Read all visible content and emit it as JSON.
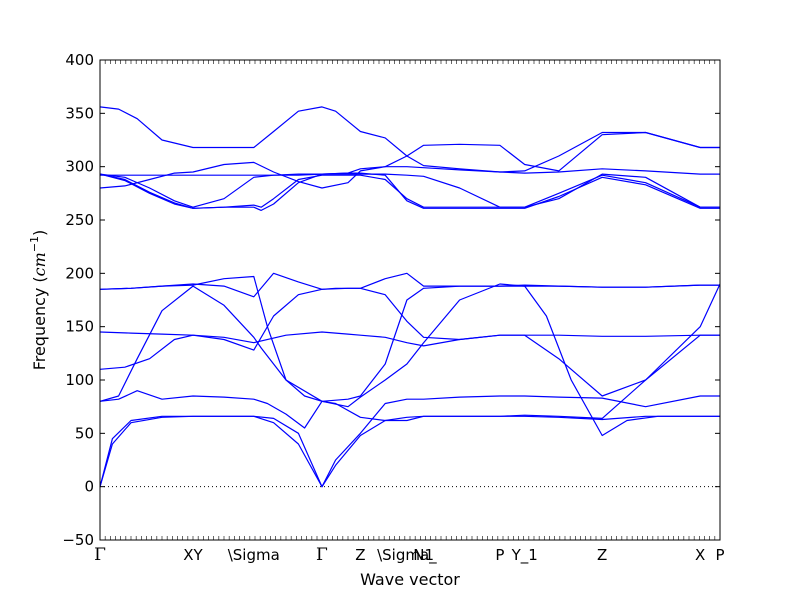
{
  "chart_data": {
    "type": "line",
    "title": "",
    "xlabel": "Wave vector",
    "ylabel_main": "Frequency",
    "ylabel_unit_open": "(",
    "ylabel_unit_var": "cm",
    "ylabel_unit_exp": "−1",
    "ylabel_unit_close": ")",
    "ylim": [
      -50,
      400
    ],
    "yticks": [
      -50,
      0,
      50,
      100,
      150,
      200,
      250,
      300,
      350,
      400
    ],
    "xlim": [
      0,
      1
    ],
    "xticks": [
      {
        "label": "Γ",
        "pos": 0.0
      },
      {
        "label": "XY",
        "pos": 0.15
      },
      {
        "label": "\\Sigma",
        "pos": 0.248
      },
      {
        "label": "Γ",
        "pos": 0.358
      },
      {
        "label": "Z",
        "pos": 0.42
      },
      {
        "label": "\\Sigma_",
        "pos": 0.495
      },
      {
        "label": "N1",
        "pos": 0.522
      },
      {
        "label": "P",
        "pos": 0.645
      },
      {
        "label": "Y_1",
        "pos": 0.685
      },
      {
        "label": "Z",
        "pos": 0.81
      },
      {
        "label": "X",
        "pos": 0.968
      },
      {
        "label": "P",
        "pos": 1.0
      }
    ],
    "grid": false,
    "line_color": "#0000ff",
    "zero_line_color": "#000000",
    "series": [
      {
        "x": [
          0,
          0.02,
          0.05,
          0.1,
          0.15,
          0.2,
          0.248,
          0.28,
          0.32,
          0.358,
          0.38,
          0.42,
          0.46,
          0.495,
          0.522,
          0.58,
          0.645,
          0.685,
          0.74,
          0.81,
          0.88,
          0.968,
          1
        ],
        "values": [
          0,
          40,
          60,
          65,
          66,
          66,
          66,
          64,
          50,
          0,
          20,
          48,
          62,
          65,
          66,
          66,
          66,
          66,
          65,
          63,
          66,
          66,
          66
        ]
      },
      {
        "x": [
          0,
          0.02,
          0.05,
          0.1,
          0.15,
          0.2,
          0.248,
          0.28,
          0.32,
          0.358,
          0.38,
          0.42,
          0.46,
          0.495,
          0.522,
          0.58,
          0.645,
          0.685,
          0.74,
          0.81,
          0.88,
          0.968,
          1
        ],
        "values": [
          0,
          45,
          62,
          66,
          66,
          66,
          66,
          60,
          40,
          0,
          25,
          50,
          78,
          82,
          82,
          84,
          85,
          85,
          84,
          83,
          75,
          85,
          85
        ]
      },
      {
        "x": [
          0,
          0.03,
          0.06,
          0.1,
          0.15,
          0.2,
          0.248,
          0.27,
          0.3,
          0.33,
          0.358,
          0.38,
          0.42,
          0.46,
          0.495,
          0.522,
          0.58,
          0.645,
          0.685,
          0.74,
          0.81,
          0.88,
          0.968,
          1
        ],
        "values": [
          80,
          82,
          90,
          82,
          85,
          84,
          82,
          78,
          68,
          55,
          80,
          78,
          65,
          62,
          62,
          66,
          66,
          66,
          67,
          66,
          64,
          100,
          150,
          190
        ]
      },
      {
        "x": [
          0,
          0.03,
          0.06,
          0.1,
          0.15,
          0.2,
          0.248,
          0.26,
          0.3,
          0.33,
          0.358,
          0.4,
          0.42,
          0.46,
          0.495,
          0.522,
          0.58,
          0.645,
          0.685,
          0.72,
          0.76,
          0.81,
          0.85,
          0.9,
          0.968,
          1
        ],
        "values": [
          80,
          85,
          120,
          165,
          188,
          170,
          140,
          130,
          100,
          85,
          80,
          75,
          84,
          100,
          115,
          135,
          175,
          190,
          188,
          160,
          100,
          48,
          62,
          66,
          66,
          66
        ]
      },
      {
        "x": [
          0,
          0.04,
          0.08,
          0.12,
          0.15,
          0.2,
          0.248,
          0.28,
          0.32,
          0.358,
          0.38,
          0.42,
          0.46,
          0.495,
          0.522,
          0.58,
          0.645,
          0.685,
          0.74,
          0.81,
          0.88,
          0.968,
          1
        ],
        "values": [
          110,
          112,
          120,
          138,
          142,
          138,
          128,
          160,
          180,
          185,
          186,
          186,
          180,
          155,
          140,
          138,
          142,
          142,
          120,
          85,
          100,
          142,
          142
        ]
      },
      {
        "x": [
          0,
          0.05,
          0.1,
          0.15,
          0.2,
          0.248,
          0.3,
          0.358,
          0.4,
          0.42,
          0.46,
          0.495,
          0.522,
          0.58,
          0.645,
          0.685,
          0.74,
          0.81,
          0.88,
          0.968,
          1
        ],
        "values": [
          145,
          144,
          143,
          142,
          140,
          135,
          142,
          145,
          143,
          142,
          140,
          135,
          132,
          138,
          142,
          142,
          142,
          141,
          141,
          142,
          142
        ]
      },
      {
        "x": [
          0,
          0.05,
          0.1,
          0.15,
          0.2,
          0.248,
          0.28,
          0.32,
          0.358,
          0.4,
          0.42,
          0.46,
          0.495,
          0.522,
          0.58,
          0.645,
          0.685,
          0.74,
          0.81,
          0.88,
          0.968,
          1
        ],
        "values": [
          185,
          186,
          188,
          190,
          188,
          178,
          200,
          192,
          185,
          186,
          186,
          195,
          200,
          188,
          188,
          188,
          189,
          188,
          187,
          187,
          189,
          189
        ]
      },
      {
        "x": [
          0,
          0.05,
          0.1,
          0.15,
          0.2,
          0.248,
          0.27,
          0.3,
          0.358,
          0.4,
          0.42,
          0.46,
          0.495,
          0.522,
          0.58,
          0.645,
          0.685,
          0.74,
          0.81,
          0.88,
          0.968,
          1
        ],
        "values": [
          185,
          186,
          188,
          189,
          195,
          197,
          150,
          100,
          80,
          82,
          85,
          115,
          175,
          186,
          188,
          188,
          188,
          188,
          187,
          187,
          189,
          189
        ]
      },
      {
        "x": [
          0,
          0.04,
          0.08,
          0.12,
          0.15,
          0.2,
          0.248,
          0.28,
          0.32,
          0.358,
          0.4,
          0.42,
          0.46,
          0.495,
          0.522,
          0.58,
          0.645,
          0.685,
          0.74,
          0.81,
          0.88,
          0.968,
          1
        ],
        "values": [
          280,
          282,
          288,
          294,
          295,
          302,
          304,
          295,
          286,
          280,
          285,
          296,
          300,
          310,
          320,
          321,
          320,
          302,
          296,
          330,
          332,
          318,
          318
        ]
      },
      {
        "x": [
          0,
          0.04,
          0.08,
          0.12,
          0.15,
          0.2,
          0.248,
          0.28,
          0.32,
          0.358,
          0.4,
          0.42,
          0.46,
          0.495,
          0.522,
          0.58,
          0.645,
          0.685,
          0.74,
          0.81,
          0.88,
          0.968,
          1
        ],
        "values": [
          292,
          292,
          292,
          292,
          292,
          292,
          292,
          292,
          292,
          293,
          294,
          298,
          300,
          300,
          299,
          297,
          295,
          294,
          295,
          298,
          296,
          293,
          293
        ]
      },
      {
        "x": [
          0,
          0.04,
          0.08,
          0.12,
          0.15,
          0.2,
          0.248,
          0.28,
          0.32,
          0.358,
          0.4,
          0.42,
          0.46,
          0.495,
          0.522,
          0.58,
          0.645,
          0.685,
          0.74,
          0.81,
          0.88,
          0.968,
          1
        ],
        "values": [
          293,
          290,
          280,
          268,
          262,
          270,
          290,
          292,
          293,
          293,
          293,
          293,
          293,
          292,
          291,
          280,
          262,
          262,
          270,
          293,
          290,
          262,
          262
        ]
      },
      {
        "x": [
          0,
          0.04,
          0.08,
          0.12,
          0.15,
          0.2,
          0.248,
          0.26,
          0.28,
          0.32,
          0.358,
          0.4,
          0.42,
          0.46,
          0.495,
          0.522,
          0.58,
          0.645,
          0.685,
          0.74,
          0.81,
          0.88,
          0.968,
          1
        ],
        "values": [
          293,
          288,
          276,
          266,
          261,
          262,
          264,
          262,
          270,
          288,
          292,
          292,
          292,
          288,
          270,
          262,
          262,
          262,
          262,
          275,
          292,
          285,
          262,
          262
        ]
      },
      {
        "x": [
          0,
          0.04,
          0.08,
          0.12,
          0.15,
          0.2,
          0.248,
          0.26,
          0.28,
          0.32,
          0.358,
          0.4,
          0.42,
          0.46,
          0.495,
          0.522,
          0.58,
          0.645,
          0.685,
          0.74,
          0.81,
          0.88,
          0.968,
          1
        ],
        "values": [
          293,
          287,
          275,
          265,
          261,
          262,
          262,
          259,
          265,
          285,
          293,
          294,
          294,
          292,
          268,
          261,
          261,
          261,
          261,
          272,
          290,
          283,
          261,
          261
        ]
      },
      {
        "x": [
          0,
          0.03,
          0.06,
          0.1,
          0.15,
          0.2,
          0.248,
          0.28,
          0.32,
          0.358,
          0.38,
          0.42,
          0.46,
          0.495,
          0.522,
          0.58,
          0.645,
          0.685,
          0.74,
          0.81,
          0.88,
          0.968,
          1
        ],
        "values": [
          356,
          354,
          345,
          325,
          318,
          318,
          318,
          333,
          352,
          356,
          352,
          333,
          327,
          310,
          301,
          298,
          295,
          296,
          310,
          332,
          332,
          318,
          318
        ]
      }
    ]
  }
}
